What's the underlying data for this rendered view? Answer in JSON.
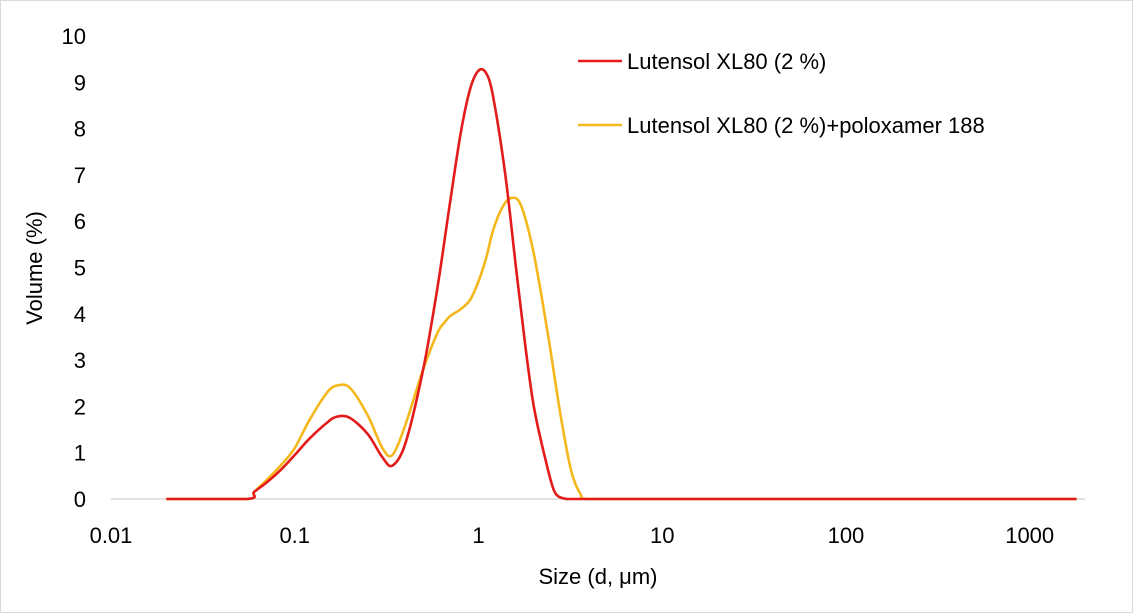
{
  "chart_data": {
    "type": "line",
    "title": "",
    "xlabel": "Size (d, μm)",
    "ylabel": "Volume (%)",
    "x_scale": "log",
    "xlim": [
      0.01,
      2000
    ],
    "ylim": [
      0,
      10
    ],
    "xticks": [
      0.01,
      0.1,
      1,
      10,
      100,
      1000
    ],
    "xtick_labels": [
      "0.01",
      "0.1",
      "1",
      "10",
      "100",
      "1000"
    ],
    "yticks": [
      0,
      1,
      2,
      3,
      4,
      5,
      6,
      7,
      8,
      9,
      10
    ],
    "ytick_labels": [
      "0",
      "1",
      "2",
      "3",
      "4",
      "5",
      "6",
      "7",
      "8",
      "9",
      "10"
    ],
    "grid": false,
    "legend_position": "top-right",
    "series": [
      {
        "name": "Lutensol XL80 (2 %)",
        "color": "#e31b1b",
        "x": [
          0.02,
          0.055,
          0.06,
          0.07,
          0.085,
          0.1,
          0.12,
          0.15,
          0.17,
          0.2,
          0.25,
          0.3,
          0.34,
          0.4,
          0.5,
          0.6,
          0.7,
          0.8,
          0.9,
          1.0,
          1.1,
          1.2,
          1.4,
          1.6,
          1.8,
          2.0,
          2.3,
          2.6,
          3.0,
          3.2,
          4.0,
          10,
          100,
          1000,
          1800
        ],
        "y": [
          0.0,
          0.0,
          0.15,
          0.35,
          0.65,
          0.95,
          1.3,
          1.65,
          1.78,
          1.75,
          1.4,
          0.9,
          0.72,
          1.2,
          2.8,
          4.6,
          6.4,
          7.9,
          8.85,
          9.25,
          9.2,
          8.7,
          7.0,
          5.0,
          3.3,
          2.0,
          0.9,
          0.15,
          0.0,
          0.0,
          0.0,
          0.0,
          0.0,
          0.0,
          0.0
        ]
      },
      {
        "name": "Lutensol XL80 (2 %)+poloxamer 188",
        "color": "#f5b81c",
        "x": [
          0.02,
          0.055,
          0.06,
          0.07,
          0.085,
          0.1,
          0.12,
          0.15,
          0.17,
          0.2,
          0.25,
          0.3,
          0.34,
          0.4,
          0.5,
          0.6,
          0.65,
          0.7,
          0.8,
          0.9,
          1.0,
          1.1,
          1.2,
          1.35,
          1.5,
          1.7,
          2.0,
          2.4,
          2.8,
          3.2,
          3.6,
          4.0,
          10,
          100,
          1000,
          1800
        ],
        "y": [
          0.0,
          0.0,
          0.15,
          0.4,
          0.75,
          1.1,
          1.7,
          2.3,
          2.45,
          2.4,
          1.8,
          1.1,
          0.95,
          1.6,
          2.8,
          3.6,
          3.8,
          3.95,
          4.1,
          4.3,
          4.7,
          5.2,
          5.8,
          6.3,
          6.5,
          6.35,
          5.3,
          3.5,
          1.8,
          0.6,
          0.1,
          0.0,
          0.0,
          0.0,
          0.0,
          0.0
        ]
      }
    ]
  }
}
